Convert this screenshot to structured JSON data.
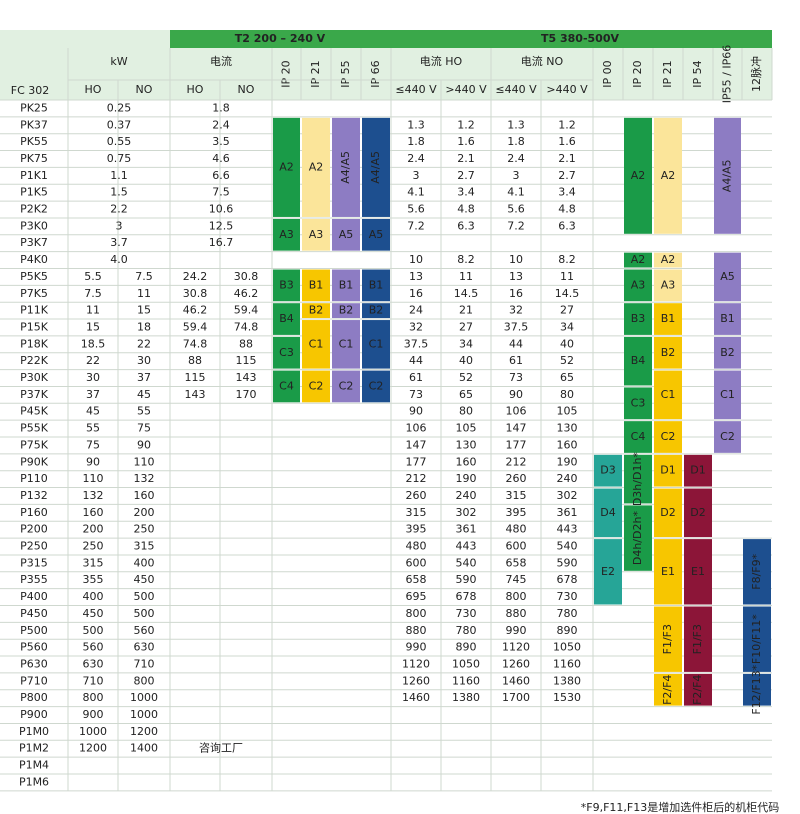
{
  "header": {
    "voltage_t2": "T2 200 – 240 V",
    "voltage_t5": "T5 380-500V",
    "model": "FC 302",
    "kw": "kW",
    "current_t2": "电流",
    "current_t5_ho": "电流 HO",
    "current_t5_no": "电流 NO",
    "kw_sub": [
      "HO",
      "NO"
    ],
    "t2_sub": [
      "HO",
      "NO"
    ],
    "t2_ip": [
      "IP 20",
      "IP 21",
      "IP 55",
      "IP 66"
    ],
    "t5_volt": [
      "≤440 V",
      ">440 V",
      "≤440 V",
      ">440 V"
    ],
    "t5_ip": [
      "IP 00",
      "IP 20",
      "IP 21",
      "IP 54",
      "IP55 / IP66",
      "12脉冲"
    ]
  },
  "rows": [
    {
      "model": "PK25",
      "kw": [
        "0.25"
      ],
      "t2": [
        "1.8"
      ],
      "t5": []
    },
    {
      "model": "PK37",
      "kw": [
        "0.37"
      ],
      "t2": [
        "2.4"
      ],
      "t5": [
        "1.3",
        "1.2",
        "1.3",
        "1.2"
      ]
    },
    {
      "model": "PK55",
      "kw": [
        "0.55"
      ],
      "t2": [
        "3.5"
      ],
      "t5": [
        "1.8",
        "1.6",
        "1.8",
        "1.6"
      ]
    },
    {
      "model": "PK75",
      "kw": [
        "0.75"
      ],
      "t2": [
        "4.6"
      ],
      "t5": [
        "2.4",
        "2.1",
        "2.4",
        "2.1"
      ]
    },
    {
      "model": "P1K1",
      "kw": [
        "1.1"
      ],
      "t2": [
        "6.6"
      ],
      "t5": [
        "3",
        "2.7",
        "3",
        "2.7"
      ]
    },
    {
      "model": "P1K5",
      "kw": [
        "1.5"
      ],
      "t2": [
        "7.5"
      ],
      "t5": [
        "4.1",
        "3.4",
        "4.1",
        "3.4"
      ]
    },
    {
      "model": "P2K2",
      "kw": [
        "2.2"
      ],
      "t2": [
        "10.6"
      ],
      "t5": [
        "5.6",
        "4.8",
        "5.6",
        "4.8"
      ]
    },
    {
      "model": "P3K0",
      "kw": [
        "3"
      ],
      "t2": [
        "12.5"
      ],
      "t5": [
        "7.2",
        "6.3",
        "7.2",
        "6.3"
      ]
    },
    {
      "model": "P3K7",
      "kw": [
        "3.7"
      ],
      "t2": [
        "16.7"
      ],
      "t5": []
    },
    {
      "model": "P4K0",
      "kw": [
        "4.0"
      ],
      "t2": [],
      "t5": [
        "10",
        "8.2",
        "10",
        "8.2"
      ]
    },
    {
      "model": "P5K5",
      "kw": [
        "5.5",
        "7.5"
      ],
      "t2": [
        "24.2",
        "30.8"
      ],
      "t5": [
        "13",
        "11",
        "13",
        "11"
      ]
    },
    {
      "model": "P7K5",
      "kw": [
        "7.5",
        "11"
      ],
      "t2": [
        "30.8",
        "46.2"
      ],
      "t5": [
        "16",
        "14.5",
        "16",
        "14.5"
      ]
    },
    {
      "model": "P11K",
      "kw": [
        "11",
        "15"
      ],
      "t2": [
        "46.2",
        "59.4"
      ],
      "t5": [
        "24",
        "21",
        "32",
        "27"
      ]
    },
    {
      "model": "P15K",
      "kw": [
        "15",
        "18"
      ],
      "t2": [
        "59.4",
        "74.8"
      ],
      "t5": [
        "32",
        "27",
        "37.5",
        "34"
      ]
    },
    {
      "model": "P18K",
      "kw": [
        "18.5",
        "22"
      ],
      "t2": [
        "74.8",
        "88"
      ],
      "t5": [
        "37.5",
        "34",
        "44",
        "40"
      ]
    },
    {
      "model": "P22K",
      "kw": [
        "22",
        "30"
      ],
      "t2": [
        "88",
        "115"
      ],
      "t5": [
        "44",
        "40",
        "61",
        "52"
      ]
    },
    {
      "model": "P30K",
      "kw": [
        "30",
        "37"
      ],
      "t2": [
        "115",
        "143"
      ],
      "t5": [
        "61",
        "52",
        "73",
        "65"
      ]
    },
    {
      "model": "P37K",
      "kw": [
        "37",
        "45"
      ],
      "t2": [
        "143",
        "170"
      ],
      "t5": [
        "73",
        "65",
        "90",
        "80"
      ]
    },
    {
      "model": "P45K",
      "kw": [
        "45",
        "55"
      ],
      "t2": [],
      "t5": [
        "90",
        "80",
        "106",
        "105"
      ]
    },
    {
      "model": "P55K",
      "kw": [
        "55",
        "75"
      ],
      "t2": [],
      "t5": [
        "106",
        "105",
        "147",
        "130"
      ]
    },
    {
      "model": "P75K",
      "kw": [
        "75",
        "90"
      ],
      "t2": [],
      "t5": [
        "147",
        "130",
        "177",
        "160"
      ]
    },
    {
      "model": "P90K",
      "kw": [
        "90",
        "110"
      ],
      "t2": [],
      "t5": [
        "177",
        "160",
        "212",
        "190"
      ]
    },
    {
      "model": "P110",
      "kw": [
        "110",
        "132"
      ],
      "t2": [],
      "t5": [
        "212",
        "190",
        "260",
        "240"
      ]
    },
    {
      "model": "P132",
      "kw": [
        "132",
        "160"
      ],
      "t2": [],
      "t5": [
        "260",
        "240",
        "315",
        "302"
      ]
    },
    {
      "model": "P160",
      "kw": [
        "160",
        "200"
      ],
      "t2": [],
      "t5": [
        "315",
        "302",
        "395",
        "361"
      ]
    },
    {
      "model": "P200",
      "kw": [
        "200",
        "250"
      ],
      "t2": [],
      "t5": [
        "395",
        "361",
        "480",
        "443"
      ]
    },
    {
      "model": "P250",
      "kw": [
        "250",
        "315"
      ],
      "t2": [],
      "t5": [
        "480",
        "443",
        "600",
        "540"
      ]
    },
    {
      "model": "P315",
      "kw": [
        "315",
        "400"
      ],
      "t2": [],
      "t5": [
        "600",
        "540",
        "658",
        "590"
      ]
    },
    {
      "model": "P355",
      "kw": [
        "355",
        "450"
      ],
      "t2": [],
      "t5": [
        "658",
        "590",
        "745",
        "678"
      ]
    },
    {
      "model": "P400",
      "kw": [
        "400",
        "500"
      ],
      "t2": [],
      "t5": [
        "695",
        "678",
        "800",
        "730"
      ]
    },
    {
      "model": "P450",
      "kw": [
        "450",
        "500"
      ],
      "t2": [],
      "t5": [
        "800",
        "730",
        "880",
        "780"
      ]
    },
    {
      "model": "P500",
      "kw": [
        "500",
        "560"
      ],
      "t2": [],
      "t5": [
        "880",
        "780",
        "990",
        "890"
      ]
    },
    {
      "model": "P560",
      "kw": [
        "560",
        "630"
      ],
      "t2": [],
      "t5": [
        "990",
        "890",
        "1120",
        "1050"
      ]
    },
    {
      "model": "P630",
      "kw": [
        "630",
        "710"
      ],
      "t2": [],
      "t5": [
        "1120",
        "1050",
        "1260",
        "1160"
      ]
    },
    {
      "model": "P710",
      "kw": [
        "710",
        "800"
      ],
      "t2": [],
      "t5": [
        "1260",
        "1160",
        "1460",
        "1380"
      ]
    },
    {
      "model": "P800",
      "kw": [
        "800",
        "1000"
      ],
      "t2": [],
      "t5": [
        "1460",
        "1380",
        "1700",
        "1530"
      ]
    },
    {
      "model": "P900",
      "kw": [
        "900",
        "1000"
      ],
      "t2": [],
      "t5": []
    },
    {
      "model": "P1M0",
      "kw": [
        "1000",
        "1200"
      ],
      "t2": [],
      "t5": []
    },
    {
      "model": "P1M2",
      "kw": [
        "1200",
        "1400"
      ],
      "t2": [],
      "t5": []
    },
    {
      "model": "P1M4",
      "kw": [],
      "t2": [],
      "t5": []
    },
    {
      "model": "P1M6",
      "kw": [],
      "t2": [],
      "t5": []
    }
  ],
  "enclosures": [
    {
      "group": "t2",
      "ip": "IP 20",
      "from": "PK37",
      "to": "P2K2",
      "label": "A2",
      "color": "#1a9b48"
    },
    {
      "group": "t2",
      "ip": "IP 20",
      "from": "P3K0",
      "to": "P3K7",
      "label": "A3",
      "color": "#1a9b48"
    },
    {
      "group": "t2",
      "ip": "IP 20",
      "from": "P5K5",
      "to": "P7K5",
      "label": "B3",
      "color": "#1a9b48"
    },
    {
      "group": "t2",
      "ip": "IP 20",
      "from": "P11K",
      "to": "P15K",
      "label": "B4",
      "color": "#1a9b48"
    },
    {
      "group": "t2",
      "ip": "IP 20",
      "from": "P18K",
      "to": "P22K",
      "label": "C3",
      "color": "#1a9b48"
    },
    {
      "group": "t2",
      "ip": "IP 20",
      "from": "P30K",
      "to": "P37K",
      "label": "C4",
      "color": "#1a9b48"
    },
    {
      "group": "t2",
      "ip": "IP 21",
      "from": "PK37",
      "to": "P2K2",
      "label": "A2",
      "color": "#fbe59a"
    },
    {
      "group": "t2",
      "ip": "IP 21",
      "from": "P3K0",
      "to": "P3K7",
      "label": "A3",
      "color": "#fbe59a"
    },
    {
      "group": "t2",
      "ip": "IP 21",
      "from": "P5K5",
      "to": "P7K5",
      "label": "B1",
      "color": "#f7c600"
    },
    {
      "group": "t2",
      "ip": "IP 21",
      "from": "P11K",
      "to": "P11K",
      "label": "B2",
      "color": "#f7c600"
    },
    {
      "group": "t2",
      "ip": "IP 21",
      "from": "P15K",
      "to": "P22K",
      "label": "C1",
      "color": "#f7c600"
    },
    {
      "group": "t2",
      "ip": "IP 21",
      "from": "P30K",
      "to": "P37K",
      "label": "C2",
      "color": "#f7c600"
    },
    {
      "group": "t2",
      "ip": "IP 55",
      "from": "PK37",
      "to": "P2K2",
      "label": "A4/A5",
      "color": "#8d7cc3"
    },
    {
      "group": "t2",
      "ip": "IP 55",
      "from": "P3K0",
      "to": "P3K7",
      "label": "A5",
      "color": "#8d7cc3"
    },
    {
      "group": "t2",
      "ip": "IP 55",
      "from": "P5K5",
      "to": "P7K5",
      "label": "B1",
      "color": "#8d7cc3"
    },
    {
      "group": "t2",
      "ip": "IP 55",
      "from": "P11K",
      "to": "P11K",
      "label": "B2",
      "color": "#8d7cc3"
    },
    {
      "group": "t2",
      "ip": "IP 55",
      "from": "P15K",
      "to": "P22K",
      "label": "C1",
      "color": "#8d7cc3"
    },
    {
      "group": "t2",
      "ip": "IP 55",
      "from": "P30K",
      "to": "P37K",
      "label": "C2",
      "color": "#8d7cc3"
    },
    {
      "group": "t2",
      "ip": "IP 66",
      "from": "PK37",
      "to": "P2K2",
      "label": "A4/A5",
      "color": "#1d4f8f"
    },
    {
      "group": "t2",
      "ip": "IP 66",
      "from": "P3K0",
      "to": "P3K7",
      "label": "A5",
      "color": "#1d4f8f"
    },
    {
      "group": "t2",
      "ip": "IP 66",
      "from": "P5K5",
      "to": "P7K5",
      "label": "B1",
      "color": "#1d4f8f"
    },
    {
      "group": "t2",
      "ip": "IP 66",
      "from": "P11K",
      "to": "P11K",
      "label": "B2",
      "color": "#1d4f8f"
    },
    {
      "group": "t2",
      "ip": "IP 66",
      "from": "P15K",
      "to": "P22K",
      "label": "C1",
      "color": "#1d4f8f"
    },
    {
      "group": "t2",
      "ip": "IP 66",
      "from": "P30K",
      "to": "P37K",
      "label": "C2",
      "color": "#1d4f8f"
    },
    {
      "group": "t5",
      "ip": "IP 00",
      "from": "P90K",
      "to": "P110",
      "label": "D3",
      "color": "#26a597"
    },
    {
      "group": "t5",
      "ip": "IP 00",
      "from": "P132",
      "to": "P200",
      "label": "D4",
      "color": "#26a597"
    },
    {
      "group": "t5",
      "ip": "IP 00",
      "from": "P250",
      "to": "P400",
      "label": "E2",
      "color": "#26a597"
    },
    {
      "group": "t5",
      "ip": "IP 20",
      "from": "PK37",
      "to": "P3K0",
      "label": "A2",
      "color": "#1a9b48"
    },
    {
      "group": "t5",
      "ip": "IP 20",
      "from": "P4K0",
      "to": "P4K0",
      "label": "A2",
      "color": "#1a9b48"
    },
    {
      "group": "t5",
      "ip": "IP 20",
      "from": "P5K5",
      "to": "P7K5",
      "label": "A3",
      "color": "#1a9b48"
    },
    {
      "group": "t5",
      "ip": "IP 20",
      "from": "P11K",
      "to": "P15K",
      "label": "B3",
      "color": "#1a9b48"
    },
    {
      "group": "t5",
      "ip": "IP 20",
      "from": "P18K",
      "to": "P30K",
      "label": "B4",
      "color": "#1a9b48"
    },
    {
      "group": "t5",
      "ip": "IP 20",
      "from": "P37K",
      "to": "P45K",
      "label": "C3",
      "color": "#1a9b48"
    },
    {
      "group": "t5",
      "ip": "IP 20",
      "from": "P55K",
      "to": "P75K",
      "label": "C4",
      "color": "#1a9b48"
    },
    {
      "group": "t5",
      "ip": "IP 20",
      "from": "P90K",
      "to": "P132",
      "label": "D3h/D1h*",
      "color": "#1a9b48"
    },
    {
      "group": "t5",
      "ip": "IP 20",
      "from": "P160",
      "to": "P315",
      "label": "D4h/D2h*",
      "color": "#1a9b48"
    },
    {
      "group": "t5",
      "ip": "IP 21",
      "from": "PK37",
      "to": "P3K0",
      "label": "A2",
      "color": "#fbe59a"
    },
    {
      "group": "t5",
      "ip": "IP 21",
      "from": "P4K0",
      "to": "P4K0",
      "label": "A2",
      "color": "#fbe59a"
    },
    {
      "group": "t5",
      "ip": "IP 21",
      "from": "P5K5",
      "to": "P7K5",
      "label": "A3",
      "color": "#fbe59a"
    },
    {
      "group": "t5",
      "ip": "IP 21",
      "from": "P11K",
      "to": "P15K",
      "label": "B1",
      "color": "#f7c600"
    },
    {
      "group": "t5",
      "ip": "IP 21",
      "from": "P18K",
      "to": "P22K",
      "label": "B2",
      "color": "#f7c600"
    },
    {
      "group": "t5",
      "ip": "IP 21",
      "from": "P30K",
      "to": "P45K",
      "label": "C1",
      "color": "#f7c600"
    },
    {
      "group": "t5",
      "ip": "IP 21",
      "from": "P55K",
      "to": "P75K",
      "label": "C2",
      "color": "#f7c600"
    },
    {
      "group": "t5",
      "ip": "IP 21",
      "from": "P90K",
      "to": "P110",
      "label": "D1",
      "color": "#f7c600"
    },
    {
      "group": "t5",
      "ip": "IP 21",
      "from": "P132",
      "to": "P200",
      "label": "D2",
      "color": "#f7c600"
    },
    {
      "group": "t5",
      "ip": "IP 21",
      "from": "P250",
      "to": "P400",
      "label": "E1",
      "color": "#f7c600"
    },
    {
      "group": "t5",
      "ip": "IP 21",
      "from": "P450",
      "to": "P630",
      "label": "F1/F3",
      "color": "#f7c600"
    },
    {
      "group": "t5",
      "ip": "IP 21",
      "from": "P710",
      "to": "P800",
      "label": "F2/F4",
      "color": "#f7c600"
    },
    {
      "group": "t5",
      "ip": "IP 54",
      "from": "P90K",
      "to": "P110",
      "label": "D1",
      "color": "#8c1538"
    },
    {
      "group": "t5",
      "ip": "IP 54",
      "from": "P132",
      "to": "P200",
      "label": "D2",
      "color": "#8c1538"
    },
    {
      "group": "t5",
      "ip": "IP 54",
      "from": "P250",
      "to": "P400",
      "label": "E1",
      "color": "#8c1538"
    },
    {
      "group": "t5",
      "ip": "IP 54",
      "from": "P450",
      "to": "P630",
      "label": "F1/F3",
      "color": "#8c1538"
    },
    {
      "group": "t5",
      "ip": "IP 54",
      "from": "P710",
      "to": "P800",
      "label": "F2/F4",
      "color": "#8c1538"
    },
    {
      "group": "t5",
      "ip": "IP55 / IP66",
      "from": "PK37",
      "to": "P3K0",
      "label": "A4/A5",
      "color": "#8d7cc3"
    },
    {
      "group": "t5",
      "ip": "IP55 / IP66",
      "from": "P4K0",
      "to": "P7K5",
      "label": "A5",
      "color": "#8d7cc3"
    },
    {
      "group": "t5",
      "ip": "IP55 / IP66",
      "from": "P11K",
      "to": "P15K",
      "label": "B1",
      "color": "#8d7cc3"
    },
    {
      "group": "t5",
      "ip": "IP55 / IP66",
      "from": "P18K",
      "to": "P22K",
      "label": "B2",
      "color": "#8d7cc3"
    },
    {
      "group": "t5",
      "ip": "IP55 / IP66",
      "from": "P30K",
      "to": "P45K",
      "label": "C1",
      "color": "#8d7cc3"
    },
    {
      "group": "t5",
      "ip": "IP55 / IP66",
      "from": "P55K",
      "to": "P75K",
      "label": "C2",
      "color": "#8d7cc3"
    },
    {
      "group": "t5",
      "ip": "12脉冲",
      "from": "P250",
      "to": "P400",
      "label": "F8/F9*",
      "color": "#1d4f8f"
    },
    {
      "group": "t5",
      "ip": "12脉冲",
      "from": "P450",
      "to": "P630",
      "label": "F10/F11*",
      "color": "#1d4f8f"
    },
    {
      "group": "t5",
      "ip": "12脉冲",
      "from": "P710",
      "to": "P800",
      "label": "F12/F13*",
      "color": "#1d4f8f"
    }
  ],
  "watermark": "咨询工厂",
  "note": "*F9,F11,F13是增加选件柜后的机柜代码"
}
